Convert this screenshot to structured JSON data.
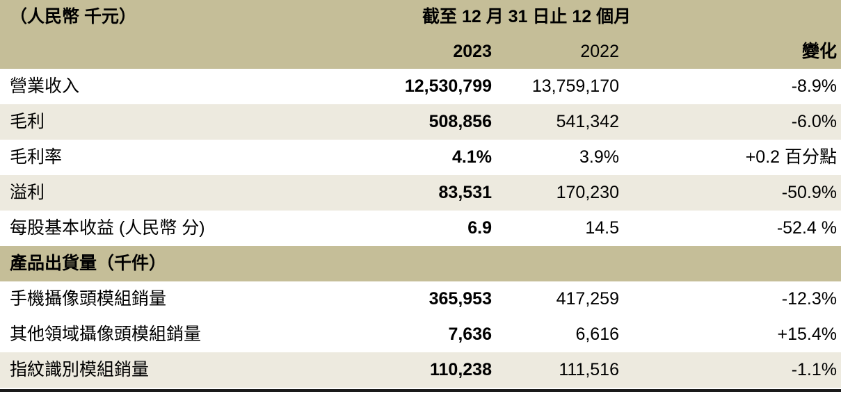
{
  "table": {
    "unit_label": "（人民幣 千元）",
    "period_header": "截至 12 月 31 日止 12 個月",
    "columns": {
      "y2023": "2023",
      "y2022": "2022",
      "change": "變化"
    },
    "rows": [
      {
        "label": "營業收入",
        "y2023": "12,530,799",
        "y2022": "13,759,170",
        "change": "-8.9%"
      },
      {
        "label": "毛利",
        "y2023": "508,856",
        "y2022": "541,342",
        "change": "-6.0%"
      },
      {
        "label": "毛利率",
        "y2023": "4.1%",
        "y2022": "3.9%",
        "change": "+0.2 百分點"
      },
      {
        "label": "溢利",
        "y2023": "83,531",
        "y2022": "170,230",
        "change": "-50.9%"
      },
      {
        "label": "每股基本收益 (人民幣 分)",
        "y2023": "6.9",
        "y2022": "14.5",
        "change": "-52.4 %"
      },
      {
        "label": "手機攝像頭模組銷量",
        "y2023": "365,953",
        "y2022": "417,259",
        "change": "-12.3%"
      },
      {
        "label": "其他領域攝像頭模組銷量",
        "y2023": "7,636",
        "y2022": "6,616",
        "change": "+15.4%"
      },
      {
        "label": "指紋識別模組銷量",
        "y2023": "110,238",
        "y2022": "111,516",
        "change": "-1.1%"
      }
    ],
    "section_header": "產品出貨量（千件）",
    "colors": {
      "header_bg": "#c5be98",
      "row_shade_bg": "#edeadf",
      "row_bg": "#ffffff",
      "text": "#000000",
      "bottom_border": "#1a1a1a"
    }
  }
}
